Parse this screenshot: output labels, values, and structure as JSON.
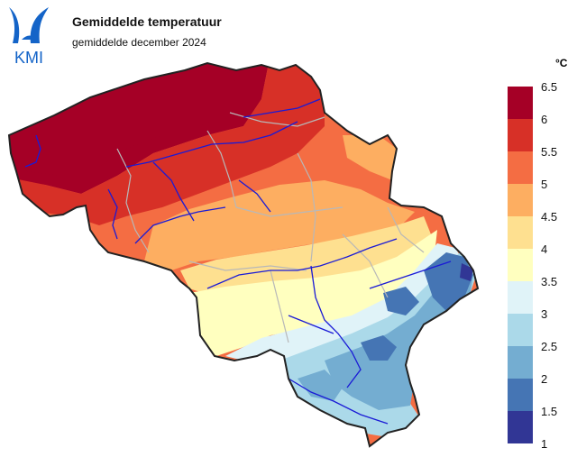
{
  "header": {
    "logo_text": "KMI",
    "title": "Gemiddelde temperatuur",
    "subtitle": "gemiddelde december 2024"
  },
  "legend": {
    "unit": "°C",
    "ticks": [
      "6.5",
      "6",
      "5.5",
      "5",
      "4.5",
      "4",
      "3.5",
      "3",
      "2.5",
      "2",
      "1.5",
      "1"
    ],
    "bands": [
      {
        "range": "6 - 6.5",
        "color": "#a50026"
      },
      {
        "range": "5.5 - 6",
        "color": "#d73027"
      },
      {
        "range": "5 - 5.5",
        "color": "#f46d43"
      },
      {
        "range": "4.5 - 5",
        "color": "#fdae61"
      },
      {
        "range": "4 - 4.5",
        "color": "#fee090"
      },
      {
        "range": "3.5 - 4",
        "color": "#ffffbf"
      },
      {
        "range": "3 - 3.5",
        "color": "#e0f3f8"
      },
      {
        "range": "2.5 - 3",
        "color": "#abd9e9"
      },
      {
        "range": "2 - 2.5",
        "color": "#74add1"
      },
      {
        "range": "1.5 - 2",
        "color": "#4575b4"
      },
      {
        "range": "1 - 1.5",
        "color": "#313695"
      }
    ]
  },
  "colors": {
    "logo_blue": "#1464c8",
    "border": "#222222",
    "rivers": "#1a1ad6",
    "provinces": "#b8b8b8"
  }
}
